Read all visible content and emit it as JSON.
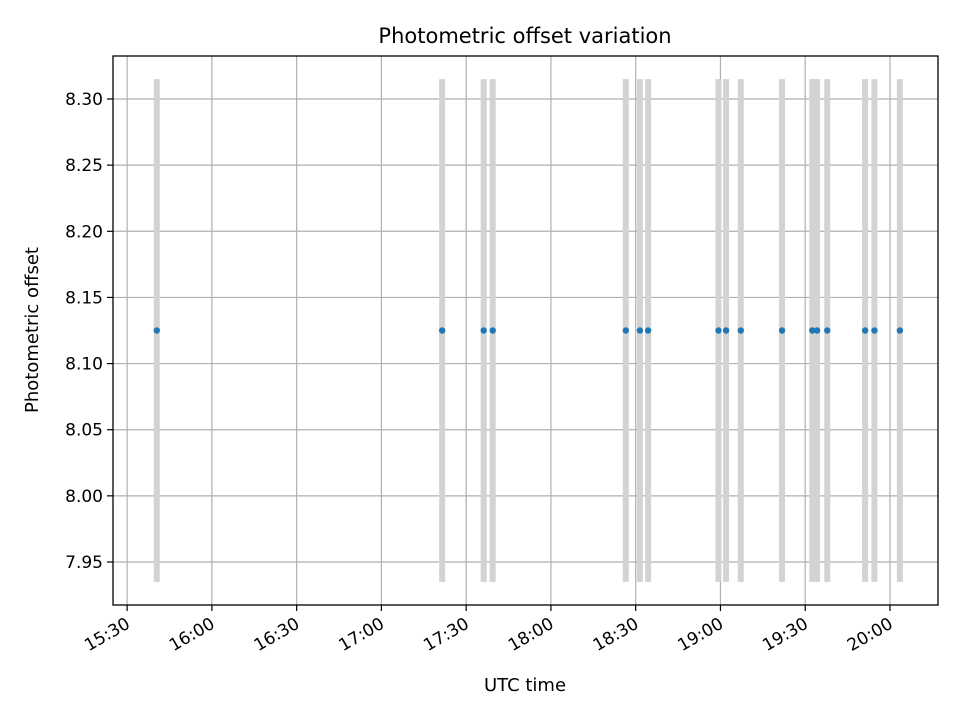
{
  "chart_data": {
    "type": "scatter",
    "title": "Photometric offset variation",
    "xlabel": "UTC time",
    "ylabel": "Photometric offset",
    "xlim_minutes": [
      925,
      1217
    ],
    "ylim": [
      7.9175,
      8.3325
    ],
    "x_ticks": [
      {
        "label": "15:30",
        "minutes": 930
      },
      {
        "label": "16:00",
        "minutes": 960
      },
      {
        "label": "16:30",
        "minutes": 990
      },
      {
        "label": "17:00",
        "minutes": 1020
      },
      {
        "label": "17:30",
        "minutes": 1050
      },
      {
        "label": "18:00",
        "minutes": 1080
      },
      {
        "label": "18:30",
        "minutes": 1110
      },
      {
        "label": "19:00",
        "minutes": 1140
      },
      {
        "label": "19:30",
        "minutes": 1170
      },
      {
        "label": "20:00",
        "minutes": 1200
      }
    ],
    "y_ticks": [
      "7.95",
      "8.00",
      "8.05",
      "8.10",
      "8.15",
      "8.20",
      "8.25",
      "8.30"
    ],
    "series": [
      {
        "name": "offset",
        "color": "#1f77b4",
        "x_minutes": [
          940.5,
          1041.5,
          1056.2,
          1059.4,
          1106.5,
          1111.5,
          1114.4,
          1139.3,
          1142.0,
          1147.2,
          1161.8,
          1172.5,
          1174.2,
          1177.8,
          1191.2,
          1194.5,
          1203.5
        ],
        "y": [
          8.125,
          8.125,
          8.125,
          8.125,
          8.125,
          8.125,
          8.125,
          8.125,
          8.125,
          8.125,
          8.125,
          8.125,
          8.125,
          8.125,
          8.125,
          8.125,
          8.125
        ],
        "err_low": 7.935,
        "err_high": 8.315,
        "err_color": "#d3d3d3"
      }
    ],
    "grid": true
  }
}
